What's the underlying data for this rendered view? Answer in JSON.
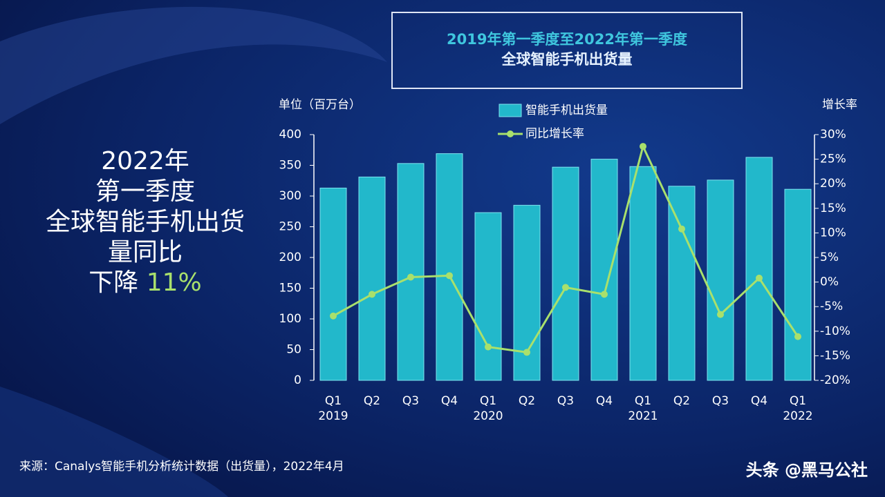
{
  "chart_data": {
    "type": "bar",
    "title": "2019年第一季度至2022年第一季度",
    "subtitle": "全球智能手机出货量",
    "y_label": "单位（百万台）",
    "y2_label": "增长率",
    "categories": [
      "Q1\n2019",
      "Q2",
      "Q3",
      "Q4",
      "Q1\n2020",
      "Q2",
      "Q3",
      "Q4",
      "Q1\n2021",
      "Q2",
      "Q3",
      "Q4",
      "Q1\n2022"
    ],
    "series": [
      {
        "name": "智能手机出货量",
        "type": "bar",
        "axis": "y",
        "color": "#22b8cb",
        "values": [
          313,
          331,
          353,
          369,
          273,
          285,
          347,
          360,
          348,
          316,
          326,
          363,
          311
        ]
      },
      {
        "name": "同比增长率",
        "type": "line",
        "axis": "y2",
        "color": "#a9e06c",
        "values": [
          -6.9,
          -2.5,
          1,
          1.3,
          -13.2,
          -14.3,
          -1.1,
          -2.5,
          27.6,
          10.8,
          -6.6,
          0.8,
          -11.1
        ]
      }
    ],
    "ylim": [
      0,
      400
    ],
    "yticks": [
      0,
      50,
      100,
      150,
      200,
      250,
      300,
      350,
      400
    ],
    "y2lim": [
      -20,
      30
    ],
    "y2ticks": [
      {
        "value": -20,
        "label": "-20%"
      },
      {
        "value": -15,
        "label": "-15%"
      },
      {
        "value": -10,
        "label": "-10%"
      },
      {
        "value": -5,
        "label": "-5%"
      },
      {
        "value": 0,
        "label": "0%"
      },
      {
        "value": 5,
        "label": "5%"
      },
      {
        "value": 10,
        "label": "10%"
      },
      {
        "value": 15,
        "label": "15%"
      },
      {
        "value": 20,
        "label": "20%"
      },
      {
        "value": 25,
        "label": "25%"
      },
      {
        "value": 30,
        "label": "30%"
      }
    ],
    "grid": false
  },
  "headline": {
    "lines": [
      "2022年",
      "第一季度",
      "全球智能手机出货",
      "量同比"
    ],
    "prefix": "下降",
    "highlight": "11%"
  },
  "source": "来源：Canalys智能手机分析统计数据（出货量），2022年4月",
  "watermark": "头条 @黑马公社"
}
